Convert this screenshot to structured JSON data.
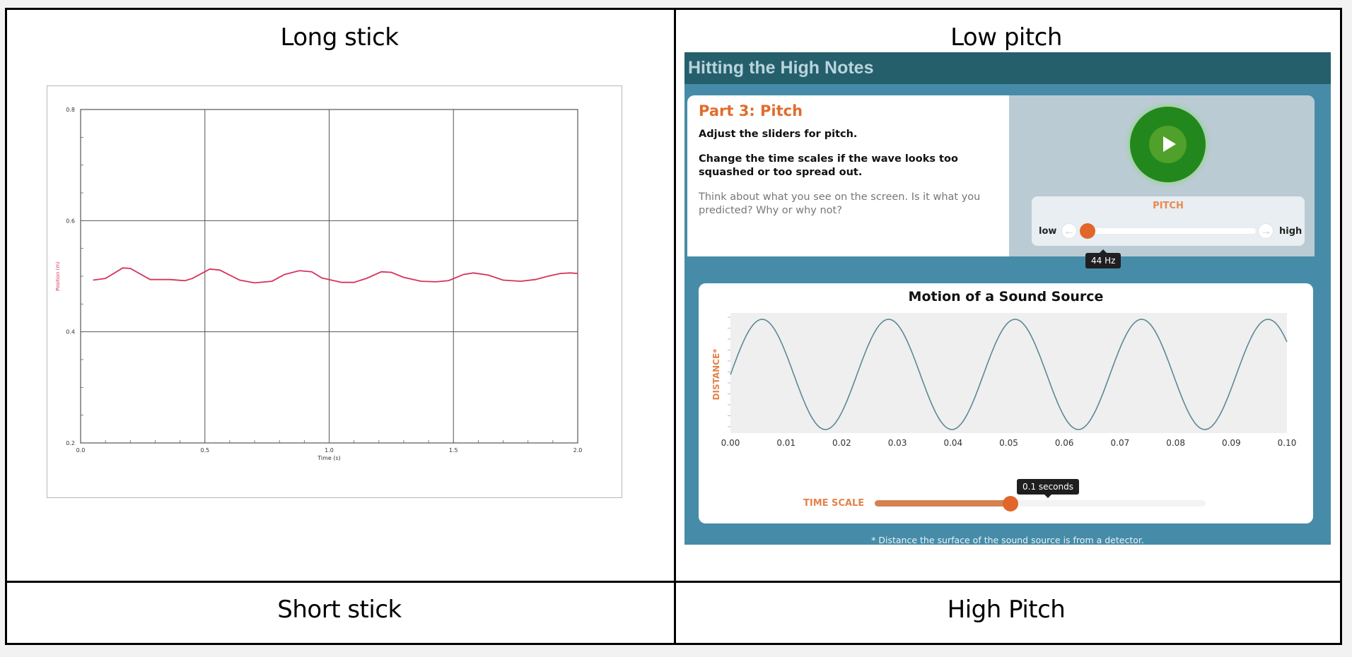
{
  "table": {
    "cells": {
      "top_left_title": "Long stick",
      "top_right_title": "Low pitch",
      "bottom_left_title": "Short stick",
      "bottom_right_title": "High Pitch"
    }
  },
  "simulation": {
    "header_title": "Hitting the High Notes",
    "part_title": "Part 3: Pitch",
    "instruction_1": "Adjust the sliders for pitch.",
    "instruction_2": "Change the time scales if the wave looks too squashed or too spread out.",
    "prompt": "Think about what you see on the screen. Is it what you predicted? Why or why not?",
    "play_icon": "play-icon",
    "pitch": {
      "label": "PITCH",
      "low_label": "low",
      "high_label": "high",
      "value_text": "44 Hz",
      "slider_fraction": 0.03
    },
    "graph_title": "Motion of a Sound Source",
    "time_scale": {
      "label": "TIME SCALE",
      "value_text": "0.1 seconds",
      "slider_fraction": 0.41
    },
    "footnote": "* Distance the surface of the sound source is from a detector.",
    "colors": {
      "header": "#245f6b",
      "accent_orange": "#e0662a",
      "play_green": "#22881e",
      "background_teal": "#468ca8"
    }
  },
  "chart_data": [
    {
      "type": "line",
      "title": "",
      "xlabel": "Time (s)",
      "ylabel": "Position (m)",
      "xlim": [
        0.0,
        2.0
      ],
      "ylim": [
        0.2,
        0.8
      ],
      "x_ticks": [
        "0.0",
        "0.5",
        "1.0",
        "1.5",
        "2.0"
      ],
      "y_ticks": [
        "0.2",
        "0.4",
        "0.6",
        "0.8"
      ],
      "grid": true,
      "series": [
        {
          "color": "#d6335c",
          "x": [
            0.05,
            0.1,
            0.17,
            0.2,
            0.28,
            0.36,
            0.42,
            0.45,
            0.52,
            0.56,
            0.64,
            0.7,
            0.77,
            0.82,
            0.88,
            0.93,
            0.97,
            1.05,
            1.1,
            1.15,
            1.21,
            1.25,
            1.3,
            1.37,
            1.43,
            1.48,
            1.54,
            1.58,
            1.64,
            1.7,
            1.77,
            1.83,
            1.88,
            1.93,
            1.97,
            2.0
          ],
          "y": [
            0.493,
            0.496,
            0.515,
            0.514,
            0.494,
            0.494,
            0.492,
            0.496,
            0.513,
            0.511,
            0.493,
            0.488,
            0.491,
            0.503,
            0.51,
            0.508,
            0.497,
            0.489,
            0.489,
            0.496,
            0.508,
            0.507,
            0.498,
            0.491,
            0.49,
            0.492,
            0.503,
            0.506,
            0.502,
            0.493,
            0.491,
            0.494,
            0.5,
            0.505,
            0.506,
            0.505
          ]
        }
      ]
    },
    {
      "type": "line",
      "title": "Motion of a Sound Source",
      "xlabel": "",
      "ylabel": "DISTANCE*",
      "xlim": [
        0.0,
        0.1
      ],
      "x_ticks": [
        "0.00",
        "0.01",
        "0.02",
        "0.03",
        "0.04",
        "0.05",
        "0.06",
        "0.07",
        "0.08",
        "0.09",
        "0.10"
      ],
      "grid": false,
      "series": [
        {
          "color": "#5d8896",
          "frequency_hz": 44,
          "amplitude": 1,
          "peaks_x": [
            0.0057,
            0.0284,
            0.0511,
            0.0739,
            0.0966
          ],
          "troughs_x": [
            0.017,
            0.0398,
            0.0625,
            0.0852
          ]
        }
      ]
    }
  ]
}
